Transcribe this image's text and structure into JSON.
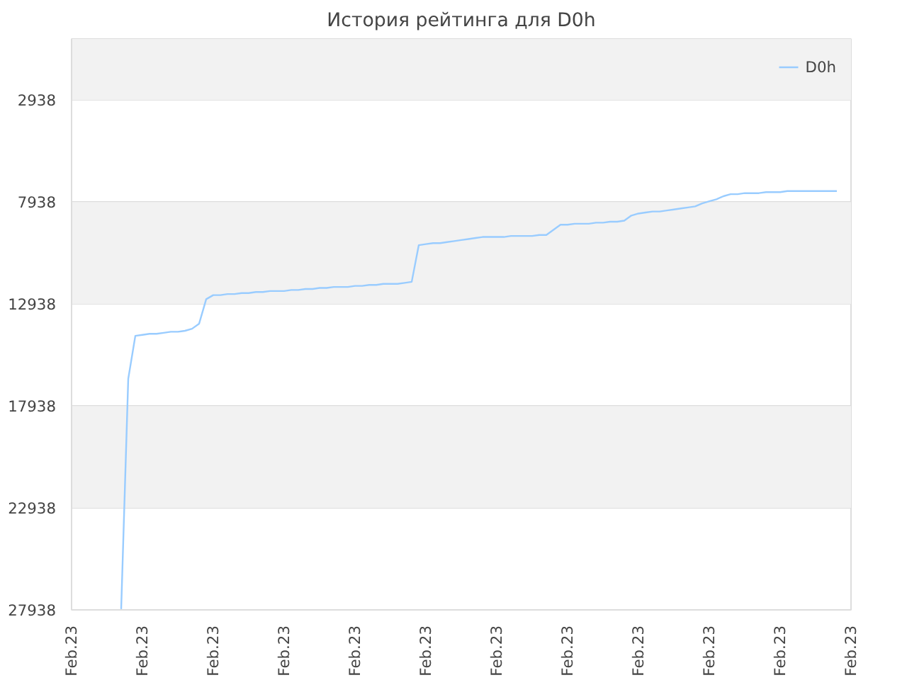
{
  "chart_data": {
    "type": "line",
    "title": "История рейтинга для D0h",
    "categories": [
      "Feb.23",
      null,
      null,
      null,
      null,
      null,
      null,
      null,
      null,
      null,
      "Feb.23",
      null,
      null,
      null,
      null,
      null,
      null,
      null,
      null,
      null,
      "Feb.23",
      null,
      null,
      null,
      null,
      null,
      null,
      null,
      null,
      null,
      "Feb.23",
      null,
      null,
      null,
      null,
      null,
      null,
      null,
      null,
      null,
      "Feb.23",
      null,
      null,
      null,
      null,
      null,
      null,
      null,
      null,
      null,
      "Feb.23",
      null,
      null,
      null,
      null,
      null,
      null,
      null,
      null,
      null,
      "Feb.23",
      null,
      null,
      null,
      null,
      null,
      null,
      null,
      null,
      null,
      "Feb.23",
      null,
      null,
      null,
      null,
      null,
      null,
      null,
      null,
      null,
      "Feb.23",
      null,
      null,
      null,
      null,
      null,
      null,
      null,
      null,
      null,
      "Feb.23",
      null,
      null,
      null,
      null,
      null,
      null,
      null,
      null,
      null,
      "Feb.23",
      null,
      null,
      null,
      null,
      null,
      null,
      null,
      null,
      null,
      "Feb.23"
    ],
    "series": [
      {
        "name": "D0h",
        "color": "#99ccff",
        "values": [
          null,
          null,
          null,
          null,
          null,
          null,
          null,
          27900,
          16600,
          14500,
          14450,
          14400,
          14400,
          14350,
          14300,
          14300,
          14250,
          14150,
          13900,
          12700,
          12500,
          12500,
          12450,
          12450,
          12400,
          12400,
          12350,
          12350,
          12300,
          12300,
          12300,
          12250,
          12250,
          12200,
          12200,
          12150,
          12150,
          12100,
          12100,
          12100,
          12050,
          12050,
          12000,
          12000,
          11950,
          11950,
          11950,
          11900,
          11850,
          10050,
          10000,
          9950,
          9950,
          9900,
          9850,
          9800,
          9750,
          9700,
          9650,
          9650,
          9650,
          9650,
          9600,
          9600,
          9600,
          9600,
          9550,
          9550,
          9300,
          9050,
          9050,
          9000,
          9000,
          9000,
          8950,
          8950,
          8900,
          8900,
          8850,
          8600,
          8500,
          8450,
          8400,
          8400,
          8350,
          8300,
          8250,
          8200,
          8150,
          8000,
          7900,
          7800,
          7650,
          7550,
          7550,
          7500,
          7500,
          7500,
          7450,
          7450,
          7450,
          7400,
          7400,
          7400,
          7400,
          7400,
          7400,
          7400,
          7400,
          null,
          null
        ]
      }
    ],
    "ylim": [
      27938,
      -62
    ],
    "yticks": [
      2938,
      7938,
      12938,
      17938,
      22938,
      27938
    ],
    "grid": "y",
    "legend": "top right",
    "marker": "none",
    "line_style": "solid"
  }
}
